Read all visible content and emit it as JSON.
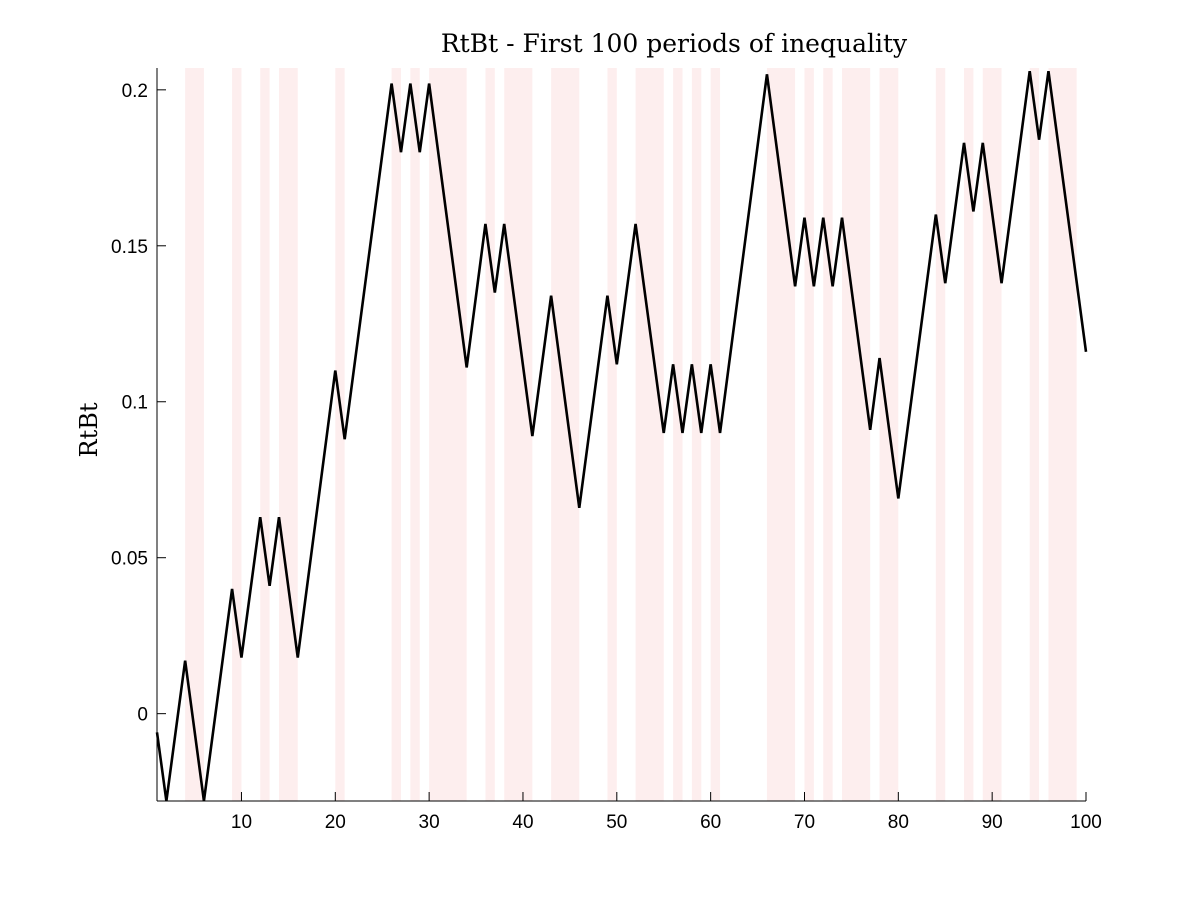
{
  "chart_data": {
    "type": "line",
    "title": "RtBt - First 100 periods of inequality",
    "xlabel": "",
    "ylabel": "RtBt",
    "xlim": [
      1,
      100
    ],
    "ylim": [
      -0.028,
      0.207
    ],
    "xticks": [
      10,
      20,
      30,
      40,
      50,
      60,
      70,
      80,
      90,
      100
    ],
    "yticks": [
      0,
      0.05,
      0.1,
      0.15,
      0.2
    ],
    "ytick_labels": [
      "0",
      "0.05",
      "0.1",
      "0.15",
      "0.2"
    ],
    "shaded_periods_color": "#fdeeee",
    "shaded_periods": [
      [
        4,
        6
      ],
      [
        9,
        10
      ],
      [
        12,
        13
      ],
      [
        14,
        16
      ],
      [
        20,
        21
      ],
      [
        26,
        27
      ],
      [
        28,
        29
      ],
      [
        30,
        34
      ],
      [
        36,
        37
      ],
      [
        38,
        41
      ],
      [
        43,
        46
      ],
      [
        49,
        50
      ],
      [
        52,
        55
      ],
      [
        56,
        57
      ],
      [
        58,
        59
      ],
      [
        60,
        61
      ],
      [
        66,
        69
      ],
      [
        70,
        71
      ],
      [
        72,
        73
      ],
      [
        74,
        77
      ],
      [
        78,
        80
      ],
      [
        84,
        85
      ],
      [
        87,
        88
      ],
      [
        89,
        91
      ],
      [
        94,
        95
      ],
      [
        96,
        99
      ]
    ],
    "series": [
      {
        "color": "#000000",
        "x": [
          1,
          2,
          4,
          6,
          9,
          10,
          12,
          13,
          14,
          16,
          20,
          21,
          26,
          27,
          28,
          29,
          30,
          34,
          36,
          37,
          38,
          41,
          43,
          46,
          49,
          50,
          52,
          55,
          56,
          57,
          58,
          59,
          60,
          61,
          66,
          69,
          70,
          71,
          72,
          73,
          74,
          77,
          78,
          80,
          84,
          85,
          87,
          88,
          89,
          91,
          94,
          95,
          96,
          100
        ],
        "y": [
          -0.006,
          -0.028,
          0.017,
          -0.028,
          0.04,
          0.018,
          0.063,
          0.041,
          0.063,
          0.018,
          0.11,
          0.088,
          0.202,
          0.18,
          0.202,
          0.18,
          0.202,
          0.111,
          0.157,
          0.135,
          0.157,
          0.089,
          0.134,
          0.066,
          0.134,
          0.112,
          0.157,
          0.09,
          0.112,
          0.09,
          0.112,
          0.09,
          0.112,
          0.09,
          0.205,
          0.137,
          0.159,
          0.137,
          0.159,
          0.137,
          0.159,
          0.091,
          0.114,
          0.069,
          0.16,
          0.138,
          0.183,
          0.161,
          0.183,
          0.138,
          0.206,
          0.184,
          0.206,
          0.116
        ]
      }
    ]
  }
}
